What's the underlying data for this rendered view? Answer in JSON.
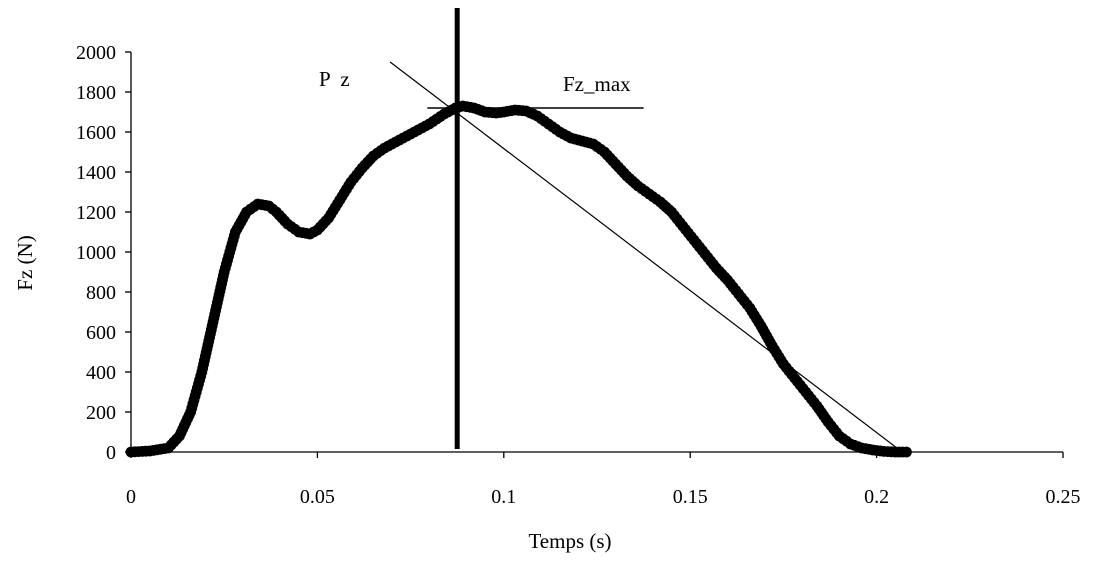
{
  "chart_data": {
    "type": "scatter",
    "title": "",
    "xlabel": "Temps (s)",
    "ylabel": "Fz (N)",
    "xlim": [
      0,
      0.25
    ],
    "ylim": [
      0,
      2000
    ],
    "x_ticks": [
      0,
      0.05,
      0.1,
      0.15,
      0.2,
      0.25
    ],
    "x_tick_labels": [
      "0",
      "0.05",
      "0.1",
      "0.15",
      "0.2",
      "0.25"
    ],
    "y_ticks": [
      0,
      200,
      400,
      600,
      800,
      1000,
      1200,
      1400,
      1600,
      1800,
      2000
    ],
    "y_tick_labels": [
      "0",
      "200",
      "400",
      "600",
      "800",
      "1000",
      "1200",
      "1400",
      "1600",
      "1800",
      "2000"
    ],
    "grid": false,
    "legend": "none",
    "marker_color": "#000000",
    "series": [
      {
        "marker": "filled-circle",
        "x": [
          0,
          0.005,
          0.01,
          0.013,
          0.016,
          0.019,
          0.022,
          0.025,
          0.028,
          0.031,
          0.034,
          0.037,
          0.039,
          0.042,
          0.045,
          0.048,
          0.05,
          0.053,
          0.056,
          0.059,
          0.062,
          0.065,
          0.068,
          0.072,
          0.076,
          0.08,
          0.084,
          0.087,
          0.089,
          0.092,
          0.095,
          0.098,
          0.1,
          0.103,
          0.106,
          0.109,
          0.112,
          0.115,
          0.118,
          0.121,
          0.124,
          0.127,
          0.13,
          0.133,
          0.136,
          0.139,
          0.142,
          0.145,
          0.148,
          0.151,
          0.154,
          0.157,
          0.16,
          0.163,
          0.166,
          0.169,
          0.172,
          0.175,
          0.178,
          0.181,
          0.184,
          0.187,
          0.19,
          0.193,
          0.196,
          0.199,
          0.202,
          0.205,
          0.208
        ],
        "y": [
          0,
          5,
          20,
          80,
          200,
          400,
          650,
          900,
          1100,
          1200,
          1240,
          1230,
          1200,
          1140,
          1100,
          1090,
          1110,
          1170,
          1260,
          1350,
          1420,
          1480,
          1520,
          1560,
          1600,
          1640,
          1690,
          1720,
          1730,
          1720,
          1700,
          1695,
          1700,
          1710,
          1705,
          1680,
          1640,
          1600,
          1570,
          1555,
          1540,
          1500,
          1440,
          1380,
          1330,
          1290,
          1250,
          1200,
          1130,
          1060,
          990,
          920,
          860,
          790,
          720,
          630,
          530,
          440,
          370,
          300,
          230,
          150,
          80,
          40,
          20,
          10,
          3,
          0,
          0
        ]
      }
    ],
    "annotations": {
      "label_pz": "P  z",
      "label_fzmax": "Fz_max",
      "vertical_line_x": 0.0875,
      "horizontal_line": {
        "x_start": 0.0795,
        "x_end": 0.1375,
        "y": 1720
      },
      "slope_line": {
        "x1": 0.0695,
        "y1": 1950,
        "x2": 0.2065,
        "y2": 5
      }
    }
  }
}
